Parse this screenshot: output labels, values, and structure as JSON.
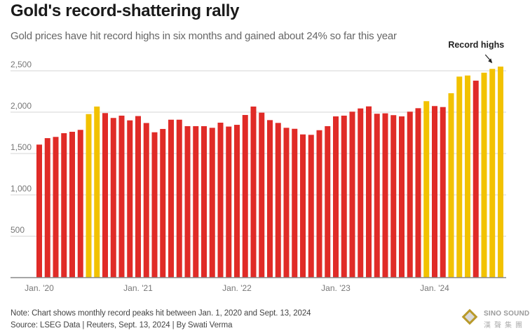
{
  "chart_data": {
    "type": "bar",
    "title": "Gold's record-shattering rally",
    "subtitle": "Gold prices have hit record highs in six months and gained about 24% so far this year",
    "xlabel": "",
    "ylabel": "",
    "ylim": [
      0,
      2500
    ],
    "yticks": [
      {
        "value": 500,
        "label": "500"
      },
      {
        "value": 1000,
        "label": "1,000"
      },
      {
        "value": 1500,
        "label": "1,500"
      },
      {
        "value": 2000,
        "label": "2,000"
      },
      {
        "value": 2500,
        "label": "2,500"
      }
    ],
    "xticks": [
      {
        "index": 0,
        "label": "Jan. '20"
      },
      {
        "index": 12,
        "label": "Jan. '21"
      },
      {
        "index": 24,
        "label": "Jan. '22"
      },
      {
        "index": 36,
        "label": "Jan. '23"
      },
      {
        "index": 48,
        "label": "Jan. '24"
      }
    ],
    "grid": true,
    "legend": "none",
    "colors": {
      "record": "#F2C200",
      "normal": "#E02B27",
      "grid": "#dddddd",
      "baseline": "#888888"
    },
    "categories": [
      "2020-01",
      "2020-02",
      "2020-03",
      "2020-04",
      "2020-05",
      "2020-06",
      "2020-07",
      "2020-08",
      "2020-09",
      "2020-10",
      "2020-11",
      "2020-12",
      "2021-01",
      "2021-02",
      "2021-03",
      "2021-04",
      "2021-05",
      "2021-06",
      "2021-07",
      "2021-08",
      "2021-09",
      "2021-10",
      "2021-11",
      "2021-12",
      "2022-01",
      "2022-02",
      "2022-03",
      "2022-04",
      "2022-05",
      "2022-06",
      "2022-07",
      "2022-08",
      "2022-09",
      "2022-10",
      "2022-11",
      "2022-12",
      "2023-01",
      "2023-02",
      "2023-03",
      "2023-04",
      "2023-05",
      "2023-06",
      "2023-07",
      "2023-08",
      "2023-09",
      "2023-10",
      "2023-11",
      "2023-12",
      "2024-01",
      "2024-02",
      "2024-03",
      "2024-04",
      "2024-05",
      "2024-06",
      "2024-07",
      "2024-08",
      "2024-09"
    ],
    "series": [
      {
        "name": "Monthly peak gold price",
        "values": [
          1608,
          1686,
          1701,
          1746,
          1763,
          1786,
          1977,
          2068,
          1989,
          1930,
          1958,
          1901,
          1953,
          1869,
          1757,
          1797,
          1909,
          1909,
          1831,
          1831,
          1831,
          1811,
          1873,
          1826,
          1847,
          1966,
          2068,
          1994,
          1904,
          1870,
          1811,
          1799,
          1731,
          1726,
          1782,
          1831,
          1949,
          1958,
          2006,
          2045,
          2070,
          1981,
          1986,
          1964,
          1949,
          2006,
          2048,
          2133,
          2074,
          2062,
          2229,
          2430,
          2443,
          2381,
          2477,
          2523,
          2551
        ],
        "record_high": [
          false,
          false,
          false,
          false,
          false,
          false,
          true,
          true,
          false,
          false,
          false,
          false,
          false,
          false,
          false,
          false,
          false,
          false,
          false,
          false,
          false,
          false,
          false,
          false,
          false,
          false,
          false,
          false,
          false,
          false,
          false,
          false,
          false,
          false,
          false,
          false,
          false,
          false,
          false,
          false,
          false,
          false,
          false,
          false,
          false,
          false,
          false,
          true,
          false,
          false,
          true,
          true,
          true,
          false,
          true,
          true,
          true
        ]
      }
    ],
    "annotations": [
      {
        "text": "Record highs",
        "points_to_index": 55
      }
    ]
  },
  "footer": {
    "note": "Note: Chart shows monthly record peaks hit between Jan. 1, 2020 and Sept. 13, 2024",
    "source": "Source: LSEG Data | Reuters, Sept. 13, 2024 | By Swati Verma"
  },
  "watermark": {
    "name": "SINO SOUND",
    "chinese": "漢聲集團"
  }
}
